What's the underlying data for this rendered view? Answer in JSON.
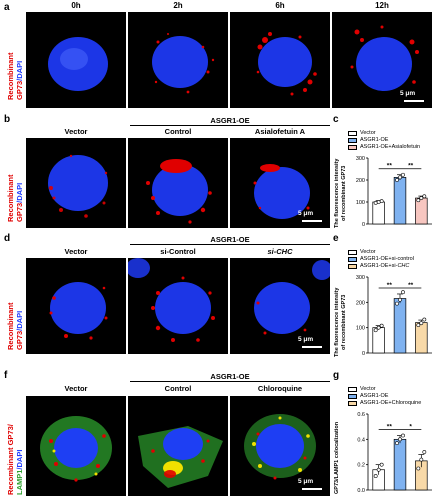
{
  "panels": {
    "a": {
      "label": "a",
      "times": [
        "0h",
        "2h",
        "6h",
        "12h"
      ],
      "scale": "5 μm"
    },
    "b": {
      "label": "b",
      "group": "ASGR1-OE",
      "cols": [
        "Vector",
        "Control",
        "Asialofetuin A"
      ],
      "scale": "5 μm"
    },
    "d": {
      "label": "d",
      "group": "ASGR1-OE",
      "cols": [
        "Vector",
        "si-Control",
        "si-CHC"
      ],
      "scale": "5 μm"
    },
    "f": {
      "label": "f",
      "group": "ASGR1-OE",
      "cols": [
        "Vector",
        "Control",
        "Chloroquine"
      ],
      "scale": "5 μm"
    },
    "c": {
      "label": "c"
    },
    "e": {
      "label": "e"
    },
    "g": {
      "label": "g"
    }
  },
  "row_labels": {
    "a": {
      "line1": "Recombinant",
      "line2_red": "GP73",
      "line2_blue": "/DAPI"
    },
    "b": {
      "line1": "Recombinant",
      "line2_red": "GP73",
      "line2_blue": "/DAPI"
    },
    "d": {
      "line1": "Recombinant",
      "line2_red": "GP73",
      "line2_blue": "/DAPI"
    },
    "f": {
      "line1": "Recombinant GP73/",
      "line2_green": "LAMP1",
      "line2_blue": "/DAPI"
    }
  },
  "colors": {
    "red": "#e00000",
    "blue": "#1f3cff",
    "green": "#2ea02e",
    "bar_white": "#ffffff",
    "bar_blue": "#7fb2f0",
    "bar_pink": "#f7c6c0",
    "bar_peach": "#f8d9a8"
  },
  "chart_data": [
    {
      "id": "c",
      "type": "bar",
      "ylabel_line1": "The fluorescence intensity",
      "ylabel_line2": "of recombinant GP73",
      "ylim": [
        0,
        300
      ],
      "yticks": [
        "0",
        "100",
        "200",
        "300"
      ],
      "series": [
        {
          "name": "Vector",
          "value": 100,
          "err": 6,
          "points": [
            96,
            100,
            104
          ],
          "color": "#ffffff"
        },
        {
          "name": "ASGR1-OE",
          "value": 212,
          "err": 12,
          "points": [
            200,
            212,
            224
          ],
          "color": "#7fb2f0"
        },
        {
          "name": "ASGR1-OE+Asialofetuin",
          "value": 118,
          "err": 9,
          "points": [
            108,
            118,
            126
          ],
          "color": "#f7c6c0"
        }
      ],
      "significance": [
        "**",
        "**"
      ]
    },
    {
      "id": "e",
      "type": "bar",
      "ylabel_line1": "The fluorescence intensity",
      "ylabel_line2": "of recombinant GP73",
      "ylim": [
        0,
        300
      ],
      "yticks": [
        "0",
        "100",
        "200",
        "300"
      ],
      "series": [
        {
          "name": "Vector",
          "value": 100,
          "err": 8,
          "points": [
            90,
            100,
            108
          ],
          "color": "#ffffff"
        },
        {
          "name": "ASGR1-OE+si-control",
          "value": 215,
          "err": 18,
          "points": [
            195,
            210,
            240
          ],
          "color": "#7fb2f0"
        },
        {
          "name": "ASGR1-OE+si-CHC",
          "value": 120,
          "err": 10,
          "points": [
            110,
            118,
            132
          ],
          "color": "#f8d9a8"
        }
      ],
      "significance": [
        "**",
        "**"
      ]
    },
    {
      "id": "g",
      "type": "bar",
      "ylabel_line1": "GP73/LAMP1 colocalization",
      "ylim": [
        0,
        0.6
      ],
      "yticks": [
        "0.0",
        "0.2",
        "0.4",
        "0.6"
      ],
      "series": [
        {
          "name": "Vector",
          "value": 0.16,
          "err": 0.04,
          "points": [
            0.11,
            0.16,
            0.2
          ],
          "color": "#ffffff"
        },
        {
          "name": "ASGR1-OE",
          "value": 0.4,
          "err": 0.03,
          "points": [
            0.37,
            0.4,
            0.43
          ],
          "color": "#7fb2f0"
        },
        {
          "name": "ASGR1-OE+Chloroquine",
          "value": 0.23,
          "err": 0.05,
          "points": [
            0.17,
            0.24,
            0.3
          ],
          "color": "#f8d9a8"
        }
      ],
      "significance": [
        "**",
        "*"
      ]
    }
  ]
}
